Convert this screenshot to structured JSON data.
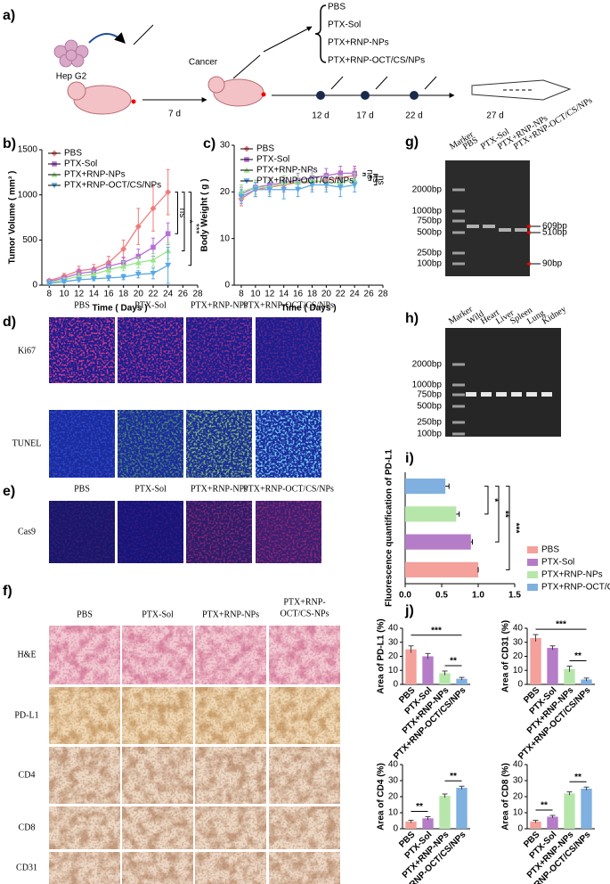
{
  "panel_labels": [
    "a)",
    "b)",
    "c)",
    "d)",
    "e)",
    "f)",
    "g)",
    "h)",
    "i)",
    "j)"
  ],
  "schematic": {
    "cell_line": "Hep G2",
    "cancer": "Cancer",
    "days": [
      "7 d",
      "12 d",
      "17 d",
      "22 d",
      "27 d"
    ],
    "groups": [
      "PBS",
      "PTX-Sol",
      "PTX+RNP-NPs",
      "PTX+RNP-OCT/CS/NPs"
    ]
  },
  "chart_data": [
    {
      "type": "line",
      "xlabel": "Time ( Days )",
      "ylabel": "Tumor Volume ( mm³ )",
      "x": [
        8,
        10,
        12,
        14,
        16,
        18,
        20,
        22,
        24
      ],
      "xlim": [
        7,
        28
      ],
      "xticks": [
        8,
        10,
        12,
        14,
        16,
        18,
        20,
        22,
        24,
        26,
        28
      ],
      "ylim": [
        0,
        1500
      ],
      "yticks": [
        0,
        500,
        1000,
        1500
      ],
      "legend": "upper left",
      "annotations": [
        "ns",
        "*",
        "***"
      ],
      "series": [
        {
          "name": "PBS",
          "color": "#f07b7b",
          "marker": "diamond",
          "values": [
            50,
            100,
            160,
            180,
            250,
            400,
            650,
            850,
            1030
          ],
          "errors": [
            15,
            30,
            50,
            50,
            70,
            100,
            200,
            250,
            250
          ]
        },
        {
          "name": "PTX-Sol",
          "color": "#b76fd6",
          "marker": "square",
          "values": [
            40,
            80,
            130,
            150,
            210,
            250,
            320,
            420,
            570
          ],
          "errors": [
            10,
            20,
            40,
            40,
            50,
            60,
            80,
            100,
            120
          ]
        },
        {
          "name": "PTX+RNP-NPs",
          "color": "#98e58a",
          "marker": "triangle-up",
          "values": [
            30,
            60,
            100,
            120,
            170,
            210,
            250,
            280,
            380
          ],
          "errors": [
            10,
            20,
            30,
            30,
            40,
            50,
            60,
            70,
            90
          ]
        },
        {
          "name": "PTX+RNP-OCT/CS/NPs",
          "color": "#5aa8e6",
          "marker": "triangle-down",
          "values": [
            20,
            40,
            60,
            70,
            80,
            90,
            120,
            130,
            220
          ],
          "errors": [
            10,
            15,
            20,
            20,
            30,
            30,
            40,
            60,
            200
          ]
        }
      ]
    },
    {
      "type": "line",
      "xlabel": "Time ( Days )",
      "ylabel": "Body Weight ( g )",
      "x": [
        8,
        10,
        12,
        14,
        16,
        18,
        20,
        22,
        24
      ],
      "xlim": [
        7,
        28
      ],
      "xticks": [
        8,
        10,
        12,
        14,
        16,
        18,
        20,
        22,
        24,
        26,
        28
      ],
      "ylim": [
        0,
        30
      ],
      "yticks": [
        0,
        10,
        20,
        30
      ],
      "legend": "upper left",
      "annotations": [
        "ns",
        "ns",
        "ns"
      ],
      "series": [
        {
          "name": "PBS",
          "color": "#f07b7b",
          "marker": "diamond",
          "values": [
            18.5,
            20.5,
            21,
            21.5,
            22,
            22,
            22.5,
            23,
            23.5
          ],
          "errors": [
            1.5,
            1.5,
            1.5,
            1.5,
            1.5,
            1.5,
            1.5,
            1.5,
            1.5
          ]
        },
        {
          "name": "PTX-Sol",
          "color": "#b76fd6",
          "marker": "square",
          "values": [
            19.5,
            21,
            21.5,
            22,
            22.5,
            23,
            23.5,
            24,
            24
          ],
          "errors": [
            1.5,
            1.5,
            1.5,
            1.5,
            1.5,
            1.5,
            1.5,
            1.5,
            1.5
          ]
        },
        {
          "name": "PTX+RNP-NPs",
          "color": "#98e58a",
          "marker": "triangle-up",
          "values": [
            20,
            21,
            21,
            22,
            22,
            22.5,
            22,
            22,
            22.5
          ],
          "errors": [
            1.5,
            1.5,
            1.5,
            1.5,
            1.5,
            1.5,
            1.5,
            1.5,
            1.5
          ]
        },
        {
          "name": "PTX+RNP-OCT/CS/NPs",
          "color": "#5aa8e6",
          "marker": "triangle-down",
          "values": [
            19,
            20.5,
            20.5,
            20.5,
            20.5,
            21.5,
            21.5,
            21,
            21.5
          ],
          "errors": [
            1.5,
            1.5,
            1.5,
            2,
            1.5,
            1.5,
            1.5,
            2,
            1.5
          ]
        }
      ]
    },
    {
      "type": "hbar",
      "ylabel": "Fluorescence quantification of PD-L1",
      "categories": [
        "PBS",
        "PTX-Sol",
        "PTX+RNP-NPs",
        "PTX+RNP-OCT/CS/NPs"
      ],
      "values": [
        1,
        0.9,
        0.7,
        0.55
      ],
      "errors": [
        0,
        0.02,
        0.04,
        0.05
      ],
      "colors": [
        "#f4a09b",
        "#b57cc8",
        "#b7e6ab",
        "#7fb0e0"
      ],
      "xlim": [
        0,
        1.5
      ],
      "xticks": [
        {
          "value": 0,
          "label": "0.0"
        },
        {
          "value": 0.5,
          "label": "0.5"
        },
        {
          "value": 1,
          "label": "1.0"
        },
        1.5
      ],
      "legend": "right",
      "annotations": [
        "*",
        "**",
        "***"
      ]
    },
    {
      "type": "bar",
      "ylabel": "Area of PD-L1 (%)",
      "categories": [
        "PBS",
        "PTX-Sol",
        "PTX+RNP-NPs",
        "PTX+RNP-OCT/CS/NPs"
      ],
      "values": [
        25,
        20,
        8,
        4
      ],
      "errors": [
        2.5,
        2,
        1.5,
        1
      ],
      "colors": [
        "#f4a09b",
        "#b57cc8",
        "#b7e6ab",
        "#7fb0e0"
      ],
      "ylim": [
        0,
        40
      ],
      "yticks": [
        0,
        10,
        20,
        30,
        40
      ],
      "annotations": [
        "***",
        "**"
      ]
    },
    {
      "type": "bar",
      "ylabel": "Area of CD31 (%)",
      "categories": [
        "PBS",
        "PTX-Sol",
        "PTX+RNP-NPs",
        "PTX+RNP-OCT/CS/NPs"
      ],
      "values": [
        33,
        26,
        11,
        3.5
      ],
      "errors": [
        2.5,
        1.5,
        2,
        1
      ],
      "colors": [
        "#f4a09b",
        "#b57cc8",
        "#b7e6ab",
        "#7fb0e0"
      ],
      "ylim": [
        0,
        40
      ],
      "yticks": [
        0,
        10,
        20,
        30,
        40
      ],
      "annotations": [
        "***",
        "**"
      ]
    },
    {
      "type": "bar",
      "ylabel": "Area of CD4 (%)",
      "categories": [
        "PBS",
        "PTX-Sol",
        "PTX+RNP-NPs",
        "PTX+RNP-OCT/CS/NPs"
      ],
      "values": [
        4.5,
        6.5,
        20.5,
        25.5
      ],
      "errors": [
        0.8,
        1,
        1.2,
        1
      ],
      "colors": [
        "#f4a09b",
        "#b57cc8",
        "#b7e6ab",
        "#7fb0e0"
      ],
      "ylim": [
        0,
        40
      ],
      "yticks": [
        0,
        10,
        20,
        30,
        40
      ],
      "annotations": [
        "**",
        "**"
      ]
    },
    {
      "type": "bar",
      "ylabel": "Area of CD8 (%)",
      "categories": [
        "PBS",
        "PTX-Sol",
        "PTX+RNP-NPs",
        "PTX+RNP-OCT/CS/NPs"
      ],
      "values": [
        4.5,
        7.5,
        22,
        25
      ],
      "errors": [
        0.8,
        0.8,
        1,
        1
      ],
      "colors": [
        "#f4a09b",
        "#b57cc8",
        "#b7e6ab",
        "#7fb0e0"
      ],
      "ylim": [
        0,
        40
      ],
      "yticks": [
        0,
        10,
        20,
        30,
        40
      ],
      "annotations": [
        "**",
        "**"
      ]
    }
  ],
  "gel_g": {
    "lanes": [
      "Marker",
      "PBS",
      "PTX-Sol",
      "PTX+RNP-NPs",
      "PTX+RNP-OCT/CS/NPs"
    ],
    "ladder": [
      "2000bp",
      "1000bp",
      "750bp",
      "500bp",
      "250bp",
      "100bp"
    ],
    "bands": [
      "609bp",
      "510bp",
      "90bp"
    ]
  },
  "gel_h": {
    "lanes": [
      "Marker",
      "Wild",
      "Heart",
      "Liver",
      "Spleen",
      "Lung",
      "Kidney"
    ],
    "ladder": [
      "2000bp",
      "1000bp",
      "750bp",
      "500bp",
      "250bp",
      "100bp"
    ]
  },
  "if_panel_d": {
    "columns": [
      "PBS",
      "PTX-Sol",
      "PTX+RNP-NPs",
      "PTX+RNP-OCT/CS/NPs"
    ],
    "rows": [
      "Ki67",
      "TUNEL"
    ]
  },
  "if_panel_e": {
    "columns": [
      "PBS",
      "PTX-Sol",
      "PTX+RNP-NPs",
      "PTX+RNP-OCT/CS/NPs"
    ],
    "rows": [
      "Cas9"
    ]
  },
  "ihc_panel_f": {
    "columns": [
      "PBS",
      "PTX-Sol",
      "PTX+RNP-NPs"
    ],
    "last_column_lines": [
      "PTX+RNP-",
      "OCT/CS-NPs"
    ],
    "rows": [
      "H&E",
      "PD-L1",
      "CD4",
      "CD8",
      "CD31"
    ]
  }
}
